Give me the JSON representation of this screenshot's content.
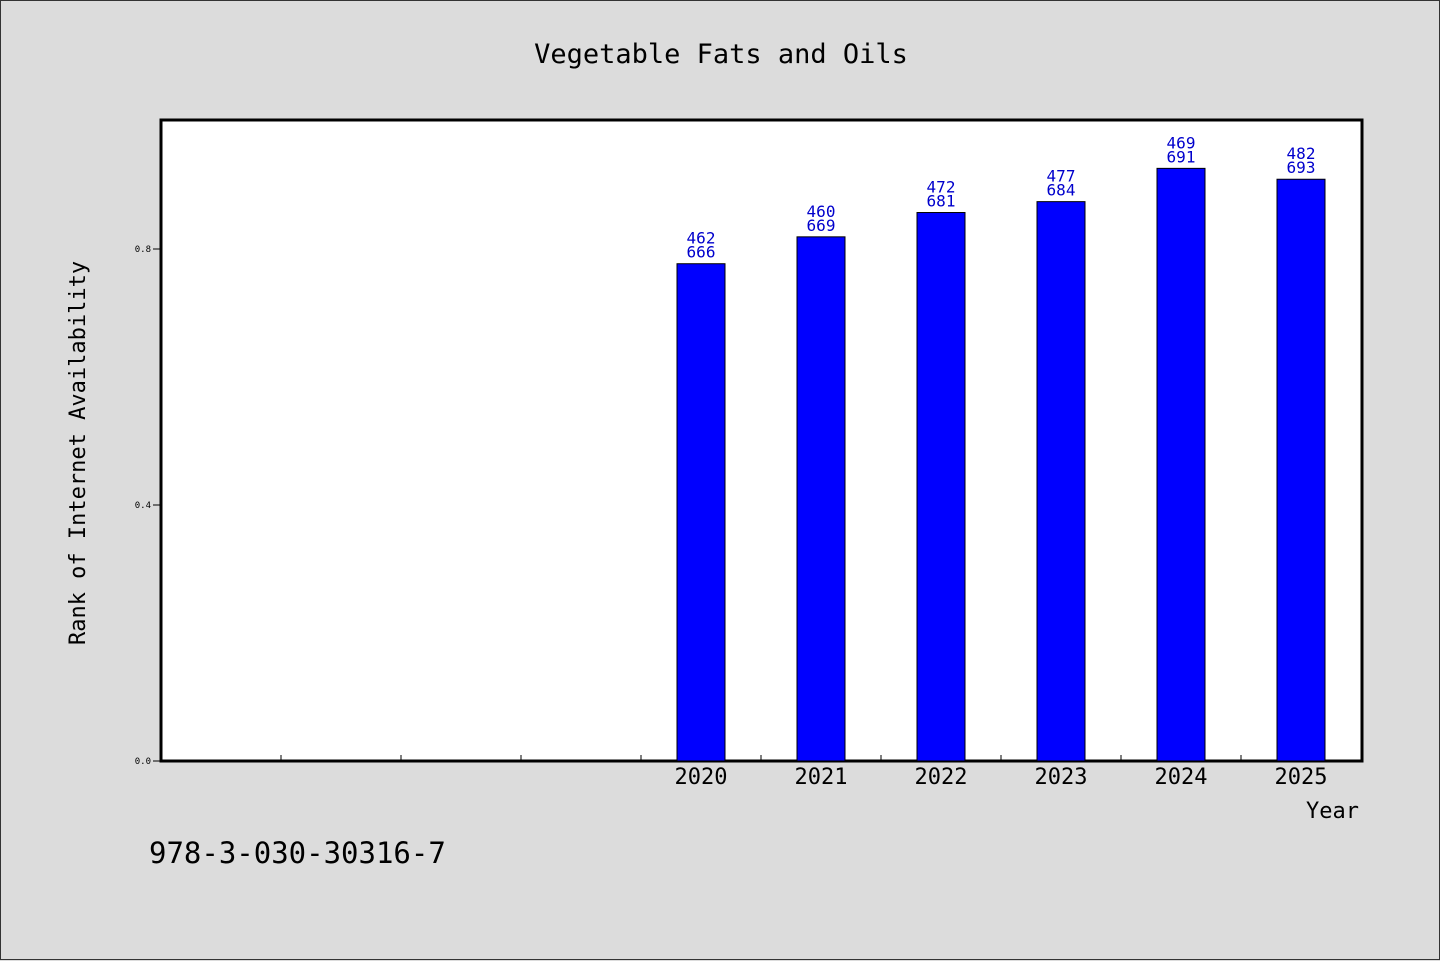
{
  "chart_data": {
    "type": "bar",
    "title": "Vegetable Fats and Oils",
    "xlabel": "Year",
    "ylabel": "Rank of Internet Availability",
    "categories": [
      "",
      "",
      "",
      "",
      "2020",
      "2021",
      "2022",
      "2023",
      "2024",
      "2025"
    ],
    "values": [
      null,
      null,
      null,
      null,
      0.777,
      0.819,
      0.857,
      0.874,
      0.926,
      0.909
    ],
    "bar_labels_top": [
      "",
      "",
      "",
      "",
      "462",
      "460",
      "472",
      "477",
      "469",
      "482"
    ],
    "bar_labels_bottom": [
      "",
      "",
      "",
      "",
      "666",
      "669",
      "681",
      "684",
      "691",
      "693"
    ],
    "ylim": [
      0,
      1.0
    ],
    "yticks": [
      {
        "value": 0.0,
        "label": "0.0"
      },
      {
        "value": 0.4,
        "label": "0.4"
      },
      {
        "value": 0.8,
        "label": "0.8"
      }
    ],
    "grid": false,
    "colors": {
      "bar": "#0000ff",
      "label": "#0000cc",
      "background": "#dcdcdc",
      "plot_bg": "#ffffff"
    }
  },
  "footer": {
    "isbn": "978-3-030-30316-7"
  }
}
